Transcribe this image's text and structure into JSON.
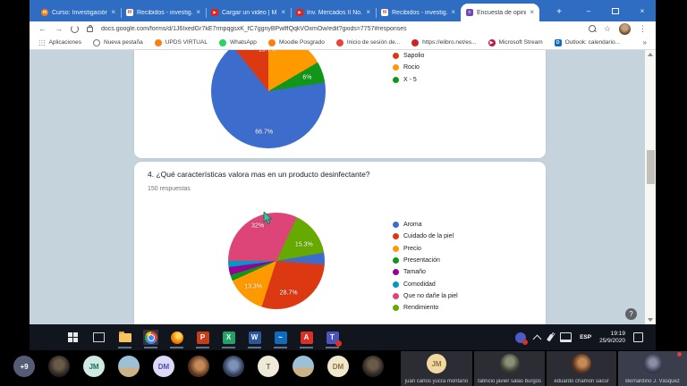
{
  "colors": {
    "chrome_titlebar": "#2e6dc2",
    "content_background": "#c4d3dc",
    "taskbar_background": "#11151d"
  },
  "browser": {
    "tabs": [
      {
        "title": "Curso: Investigación",
        "favicon": "moodle",
        "active": false
      },
      {
        "title": "Recibidos - investig...",
        "favicon": "gmail",
        "active": false
      },
      {
        "title": "Cargar un video | M...",
        "favicon": "youtube",
        "active": false
      },
      {
        "title": "Inv. Mercados II No...",
        "favicon": "youtube",
        "active": false
      },
      {
        "title": "Recibidos - investig...",
        "favicon": "gmail",
        "active": false
      },
      {
        "title": "Encuesta de opinió...",
        "favicon": "forms",
        "active": true
      }
    ],
    "url": "docs.google.com/forms/d/1J6IxedGr7kE7rmpqgsxK_fC7ggnyBPwlffQqkVOxmOw/edit?gxids=7757#responses",
    "bookmarks": [
      {
        "label": "Aplicaciones",
        "icon": "apps-grid"
      },
      {
        "label": "Nueva pestaña",
        "icon": "globe"
      },
      {
        "label": "UPDS VIRTUAL",
        "icon": "upds"
      },
      {
        "label": "WhatsApp",
        "icon": "whatsapp"
      },
      {
        "label": "Moodle Posgrado",
        "icon": "moodle"
      },
      {
        "label": "Inicio de sesión de...",
        "icon": "login"
      },
      {
        "label": "https://elibro.net/es...",
        "icon": "elibro"
      },
      {
        "label": "Microsoft Stream",
        "icon": "stream"
      },
      {
        "label": "Outlook: calendario...",
        "icon": "outlook"
      }
    ],
    "bookmarks_overflow": "»"
  },
  "form": {
    "q4_title": "4. ¿Qué características valora mas en un producto desinfectante?",
    "q4_responses": "150 respuestas"
  },
  "chart_data": [
    {
      "type": "pie",
      "note": "top question card, partially scrolled out of view",
      "slices": [
        {
          "label": "",
          "value": 66.7,
          "color": "#3d6dcc",
          "label_visible": true
        },
        {
          "label": "Sapolio",
          "value": 10.7,
          "color": "#dc3912",
          "label_visible": true
        },
        {
          "label": "Rocio",
          "value": 16.6,
          "color": "#ff9900",
          "label_visible": false
        },
        {
          "label": "X - 5",
          "value": 6,
          "color": "#109618",
          "label_visible": true
        }
      ],
      "visible_labels": [
        "10.7%",
        "6%",
        "66.7%"
      ],
      "legend_visible": [
        "Sapolio",
        "Rocio",
        "X - 5"
      ],
      "legend_position": "right"
    },
    {
      "type": "pie",
      "title": "4. ¿Qué características valora mas en un producto desinfectante?",
      "subtitle": "150 respuestas",
      "slices": [
        {
          "label": "Aroma",
          "value": 4,
          "color": "#3d6dcc",
          "label_visible": false
        },
        {
          "label": "Cuidado de la piel",
          "value": 28.7,
          "color": "#dc3912",
          "label_visible": true
        },
        {
          "label": "Precio",
          "value": 13.3,
          "color": "#ff9900",
          "label_visible": true
        },
        {
          "label": "Presentación",
          "value": 2,
          "color": "#109618",
          "label_visible": false
        },
        {
          "label": "Tamaño",
          "value": 2.7,
          "color": "#990099",
          "label_visible": false
        },
        {
          "label": "Comodidad",
          "value": 2,
          "color": "#0099c6",
          "label_visible": false
        },
        {
          "label": "Que no dañe la piel",
          "value": 32,
          "color": "#dd4477",
          "label_visible": true
        },
        {
          "label": "Rendimiento",
          "value": 15.3,
          "color": "#66aa00",
          "label_visible": true
        }
      ],
      "visible_labels": [
        "32%",
        "15.3%",
        "13.3%",
        "28.7%"
      ],
      "legend_position": "right"
    }
  ],
  "taskbar": {
    "icons": [
      "start",
      "task-view",
      "file-explorer",
      "chrome",
      "firefox",
      "powerpoint",
      "excel",
      "word",
      "outlook",
      "acrobat",
      "teams"
    ],
    "tray": {
      "language": "ESP",
      "time": "19:19",
      "date": "25/9/2020"
    }
  },
  "meeting": {
    "small_avatars": [
      {
        "kind": "badge",
        "text": "+9",
        "bg": "#555d76",
        "fg": "#ffffff"
      },
      {
        "kind": "photo",
        "variant": "ph-dark"
      },
      {
        "kind": "initials",
        "text": "JM",
        "bg": "#cfe9e3",
        "fg": "#1e6e62"
      },
      {
        "kind": "photo",
        "variant": "ph-beach"
      },
      {
        "kind": "initials",
        "text": "DM",
        "bg": "#dcd9f8",
        "fg": "#4d51a8"
      },
      {
        "kind": "photo",
        "variant": "ph-warm"
      },
      {
        "kind": "photo",
        "variant": "ph-cool"
      },
      {
        "kind": "initials",
        "text": "T",
        "bg": "#efe9d9",
        "fg": "#6f6852"
      },
      {
        "kind": "photo",
        "variant": "ph-beach"
      },
      {
        "kind": "initials",
        "text": "DM",
        "bg": "#f1e7cd",
        "fg": "#8a7340"
      },
      {
        "kind": "photo",
        "variant": "ph-dark"
      }
    ],
    "tiles": [
      {
        "name": "juan carlos yucra montaño",
        "avatar": "initials",
        "initials": "JM",
        "bg": "#efd9a0",
        "fg": "#8a7440",
        "highlight": false
      },
      {
        "name": "fabricio javier salas burgos",
        "avatar": "photo",
        "variant": "ph-green",
        "highlight": false
      },
      {
        "name": "eduardo chamon sacur",
        "avatar": "photo",
        "variant": "ph-warm",
        "highlight": false
      },
      {
        "name": "Bernardino J. Vásquez",
        "avatar": "photo",
        "variant": "ph-blue",
        "highlight": true
      }
    ]
  }
}
